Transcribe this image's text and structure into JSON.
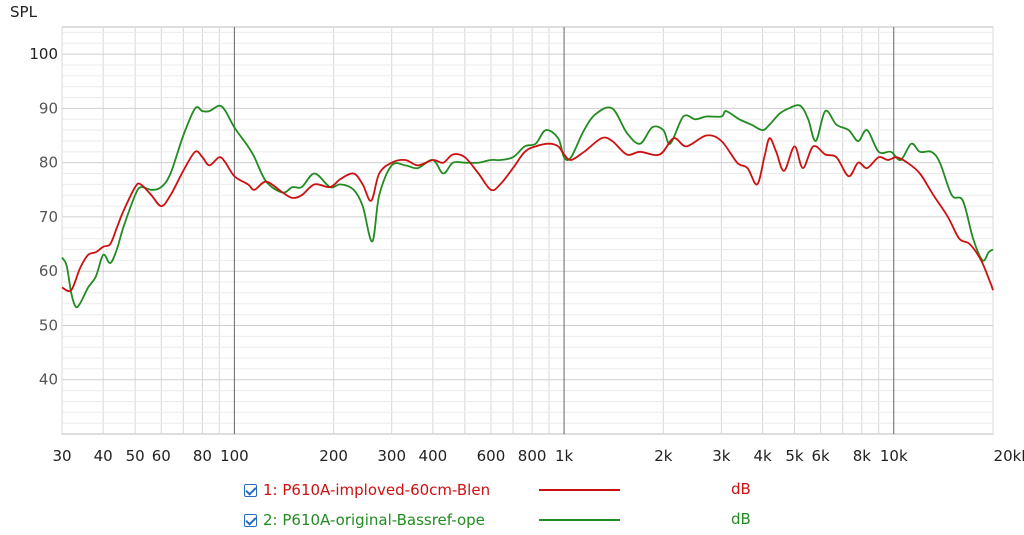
{
  "chart_data": {
    "type": "line",
    "ylabel": "SPL",
    "x_scale": "log",
    "xlim": [
      30,
      20000
    ],
    "ylim": [
      30,
      105
    ],
    "y_ticks": [
      40,
      50,
      60,
      70,
      80,
      90,
      100
    ],
    "x_ticks": [
      {
        "v": 30,
        "label": "30"
      },
      {
        "v": 40,
        "label": "40"
      },
      {
        "v": 50,
        "label": "50"
      },
      {
        "v": 60,
        "label": "60"
      },
      {
        "v": 80,
        "label": "80"
      },
      {
        "v": 100,
        "label": "100"
      },
      {
        "v": 200,
        "label": "200"
      },
      {
        "v": 300,
        "label": "300"
      },
      {
        "v": 400,
        "label": "400"
      },
      {
        "v": 600,
        "label": "600"
      },
      {
        "v": 800,
        "label": "800"
      },
      {
        "v": 1000,
        "label": "1k"
      },
      {
        "v": 2000,
        "label": "2k"
      },
      {
        "v": 3000,
        "label": "3k"
      },
      {
        "v": 4000,
        "label": "4k"
      },
      {
        "v": 5000,
        "label": "5k"
      },
      {
        "v": 6000,
        "label": "6k"
      },
      {
        "v": 8000,
        "label": "8k"
      },
      {
        "v": 10000,
        "label": "10k"
      },
      {
        "v": 20000,
        "label": "20kHz"
      }
    ],
    "grid": true,
    "series": [
      {
        "name": "1: P610A-imploved-60cm-Blen",
        "unit": "dB",
        "color": "#cc1111",
        "points": [
          [
            30,
            57
          ],
          [
            32,
            56.5
          ],
          [
            34,
            60.5
          ],
          [
            36,
            63
          ],
          [
            38,
            63.5
          ],
          [
            40,
            64.5
          ],
          [
            42,
            65
          ],
          [
            44,
            68
          ],
          [
            46,
            71
          ],
          [
            50,
            75.5
          ],
          [
            52,
            76
          ],
          [
            56,
            74
          ],
          [
            60,
            72
          ],
          [
            64,
            74
          ],
          [
            70,
            78.5
          ],
          [
            76,
            82
          ],
          [
            80,
            81
          ],
          [
            84,
            79.5
          ],
          [
            90,
            81
          ],
          [
            94,
            80
          ],
          [
            100,
            77.5
          ],
          [
            110,
            76
          ],
          [
            115,
            75
          ],
          [
            125,
            76.5
          ],
          [
            140,
            74.5
          ],
          [
            150,
            73.5
          ],
          [
            160,
            74
          ],
          [
            175,
            76
          ],
          [
            195,
            75.5
          ],
          [
            210,
            77
          ],
          [
            230,
            78
          ],
          [
            245,
            76
          ],
          [
            260,
            73
          ],
          [
            275,
            78
          ],
          [
            300,
            80
          ],
          [
            330,
            80.5
          ],
          [
            360,
            79.5
          ],
          [
            400,
            80.5
          ],
          [
            430,
            80
          ],
          [
            460,
            81.5
          ],
          [
            500,
            81
          ],
          [
            550,
            78
          ],
          [
            600,
            75
          ],
          [
            640,
            76
          ],
          [
            700,
            79
          ],
          [
            760,
            82
          ],
          [
            820,
            83
          ],
          [
            900,
            83.5
          ],
          [
            960,
            83
          ],
          [
            1000,
            81.5
          ],
          [
            1050,
            80.5
          ],
          [
            1150,
            82
          ],
          [
            1300,
            84.5
          ],
          [
            1400,
            84
          ],
          [
            1550,
            81.5
          ],
          [
            1700,
            82
          ],
          [
            1950,
            81.5
          ],
          [
            2150,
            84.5
          ],
          [
            2350,
            83
          ],
          [
            2700,
            85
          ],
          [
            3000,
            84
          ],
          [
            3350,
            80
          ],
          [
            3600,
            79
          ],
          [
            3850,
            76
          ],
          [
            4050,
            81
          ],
          [
            4200,
            84.5
          ],
          [
            4400,
            82
          ],
          [
            4650,
            78.5
          ],
          [
            5000,
            83
          ],
          [
            5300,
            79
          ],
          [
            5700,
            83
          ],
          [
            6200,
            81.5
          ],
          [
            6700,
            81
          ],
          [
            7300,
            77.5
          ],
          [
            7800,
            80
          ],
          [
            8300,
            79
          ],
          [
            9000,
            81
          ],
          [
            9600,
            80.5
          ],
          [
            10200,
            81
          ],
          [
            11000,
            80
          ],
          [
            12000,
            78
          ],
          [
            13200,
            74
          ],
          [
            14600,
            70
          ],
          [
            15800,
            66
          ],
          [
            17000,
            65
          ],
          [
            18400,
            62
          ],
          [
            19600,
            58
          ],
          [
            20000,
            56.5
          ]
        ]
      },
      {
        "name": "2: P610A-original-Bassref-ope",
        "unit": "dB",
        "color": "#228b22",
        "points": [
          [
            30,
            62.5
          ],
          [
            31,
            61
          ],
          [
            32,
            56
          ],
          [
            33,
            53.5
          ],
          [
            34,
            54
          ],
          [
            36,
            57
          ],
          [
            38,
            59
          ],
          [
            40,
            63
          ],
          [
            42,
            61.5
          ],
          [
            44,
            64
          ],
          [
            46,
            68
          ],
          [
            50,
            74
          ],
          [
            52,
            75.5
          ],
          [
            56,
            75
          ],
          [
            60,
            75.5
          ],
          [
            64,
            78
          ],
          [
            70,
            85
          ],
          [
            76,
            90
          ],
          [
            80,
            89.5
          ],
          [
            84,
            89.5
          ],
          [
            90,
            90.5
          ],
          [
            94,
            89.5
          ],
          [
            100,
            86.5
          ],
          [
            110,
            83
          ],
          [
            115,
            81
          ],
          [
            125,
            76.5
          ],
          [
            140,
            74.5
          ],
          [
            150,
            75.5
          ],
          [
            160,
            75.5
          ],
          [
            175,
            78
          ],
          [
            195,
            75.5
          ],
          [
            210,
            76
          ],
          [
            230,
            75
          ],
          [
            245,
            72
          ],
          [
            262,
            65.5
          ],
          [
            275,
            74
          ],
          [
            300,
            79.5
          ],
          [
            330,
            79.5
          ],
          [
            360,
            79
          ],
          [
            400,
            80.5
          ],
          [
            430,
            78
          ],
          [
            460,
            80
          ],
          [
            500,
            80
          ],
          [
            550,
            80
          ],
          [
            600,
            80.5
          ],
          [
            640,
            80.5
          ],
          [
            700,
            81
          ],
          [
            760,
            83
          ],
          [
            820,
            83.5
          ],
          [
            880,
            86
          ],
          [
            960,
            84.5
          ],
          [
            1000,
            81
          ],
          [
            1050,
            81
          ],
          [
            1150,
            86
          ],
          [
            1250,
            89
          ],
          [
            1400,
            90
          ],
          [
            1550,
            85.5
          ],
          [
            1700,
            83.5
          ],
          [
            1850,
            86.5
          ],
          [
            2000,
            86
          ],
          [
            2100,
            83.5
          ],
          [
            2300,
            88.5
          ],
          [
            2500,
            88
          ],
          [
            2700,
            88.5
          ],
          [
            3000,
            88.5
          ],
          [
            3100,
            89.5
          ],
          [
            3400,
            88
          ],
          [
            3700,
            87
          ],
          [
            4000,
            86
          ],
          [
            4200,
            87
          ],
          [
            4500,
            89
          ],
          [
            4800,
            90
          ],
          [
            5200,
            90.5
          ],
          [
            5500,
            88
          ],
          [
            5800,
            84
          ],
          [
            6200,
            89.5
          ],
          [
            6700,
            87
          ],
          [
            7300,
            86
          ],
          [
            7800,
            84
          ],
          [
            8300,
            86
          ],
          [
            9000,
            82
          ],
          [
            9800,
            82
          ],
          [
            10500,
            80.5
          ],
          [
            11300,
            83.5
          ],
          [
            12000,
            82
          ],
          [
            13000,
            82
          ],
          [
            13800,
            80
          ],
          [
            15000,
            74
          ],
          [
            16200,
            73
          ],
          [
            17400,
            66
          ],
          [
            18600,
            62
          ],
          [
            19400,
            63.5
          ],
          [
            20000,
            64
          ]
        ]
      }
    ]
  }
}
